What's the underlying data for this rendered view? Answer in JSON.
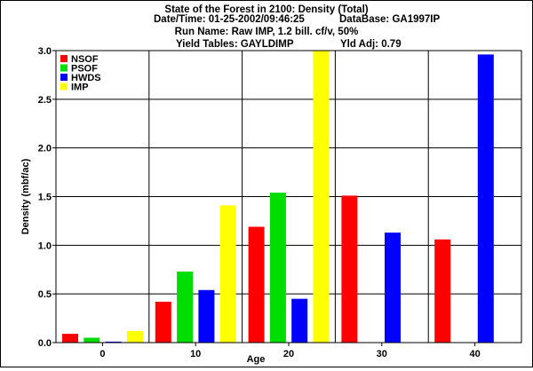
{
  "header": {
    "line1": "State of the Forest in 2100: Density (Total)",
    "line2_left": "Date/Time: 01-25-2002/09:46:25",
    "line2_right": "DataBase: GA1997IP",
    "line3": "Run Name: Raw IMP, 1.2 bill. cf/v, 50%",
    "line4_left": "Yield Tables: GAYLDIMP",
    "line4_right": "Yld Adj: 0.79"
  },
  "chart_data": {
    "type": "bar",
    "title": "State of the Forest in 2100: Density (Total)",
    "xlabel": "Age",
    "ylabel": "Density (mbf/ac)",
    "categories": [
      "0",
      "10",
      "20",
      "30",
      "40"
    ],
    "ylim": [
      0,
      3.0
    ],
    "yticks": [
      "0.0",
      "0.5",
      "1.0",
      "1.5",
      "2.0",
      "2.5",
      "3.0"
    ],
    "grid": true,
    "legend_position": "top-left",
    "series": [
      {
        "name": "NSOF",
        "color": "#ff0000",
        "values": [
          0.09,
          0.42,
          1.19,
          1.51,
          1.06
        ]
      },
      {
        "name": "PSOF",
        "color": "#00dd00",
        "values": [
          0.05,
          0.73,
          1.54,
          0,
          0
        ]
      },
      {
        "name": "HWDS",
        "color": "#0000ff",
        "values": [
          0.01,
          0.54,
          0.45,
          1.13,
          2.96
        ]
      },
      {
        "name": "IMP",
        "color": "#ffff00",
        "values": [
          0.12,
          1.41,
          3.0,
          0,
          0
        ]
      }
    ]
  }
}
